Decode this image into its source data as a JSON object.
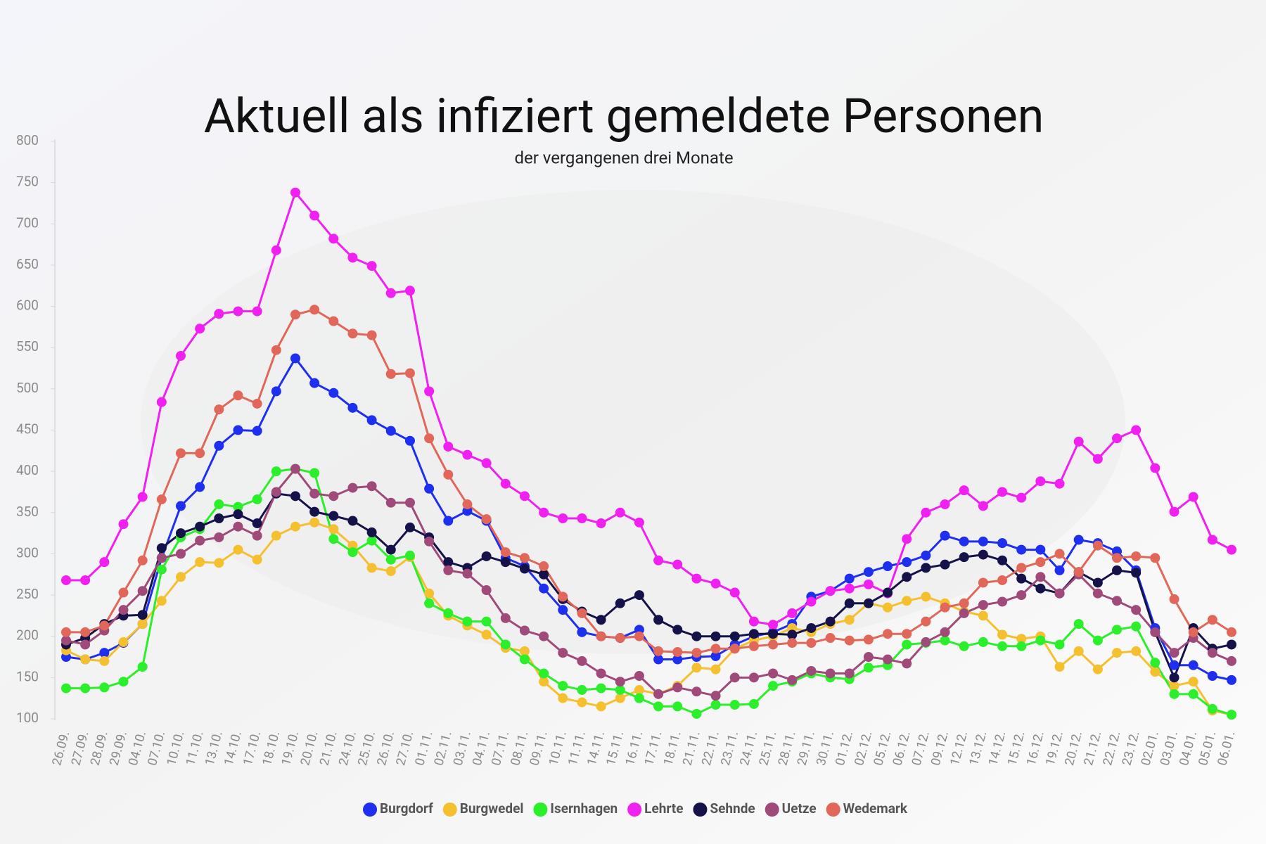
{
  "chart_data": {
    "type": "line",
    "title": "Aktuell als infiziert gemeldete Personen",
    "subtitle": "der vergangenen drei Monate",
    "categories": [
      "26.09.",
      "27.09.",
      "28.09.",
      "29.09.",
      "04.10.",
      "07.10.",
      "10.10.",
      "11.10.",
      "13.10.",
      "14.10.",
      "17.10.",
      "18.10.",
      "19.10.",
      "20.10.",
      "21.10.",
      "24.10.",
      "25.10.",
      "26.10.",
      "27.10.",
      "01.11.",
      "02.11.",
      "03.11.",
      "04.11.",
      "07.11.",
      "08.11.",
      "09.11.",
      "10.11.",
      "11.11.",
      "14.11.",
      "15.11.",
      "16.11.",
      "17.11.",
      "18.11.",
      "21.11.",
      "22.11.",
      "23.11.",
      "24.11.",
      "25.11.",
      "28.11.",
      "29.11.",
      "30.11.",
      "01.12.",
      "02.12.",
      "05.12.",
      "06.12.",
      "07.12.",
      "09.12.",
      "12.12.",
      "13.12.",
      "14.12.",
      "15.12.",
      "16.12.",
      "19.12.",
      "20.12.",
      "21.12.",
      "22.12.",
      "23.12.",
      "02.01.",
      "03.01.",
      "04.01.",
      "05.01.",
      "06.01."
    ],
    "series": [
      {
        "name": "Burgdorf",
        "color": "#1f2ff0",
        "values": [
          175,
          172,
          180,
          192,
          215,
          295,
          358,
          381,
          431,
          450,
          449,
          497,
          537,
          507,
          495,
          477,
          462,
          449,
          437,
          379,
          340,
          352,
          340,
          295,
          285,
          258,
          232,
          205,
          200,
          198,
          208,
          172,
          172,
          175,
          176,
          190,
          200,
          205,
          215,
          248,
          255,
          270,
          278,
          285,
          290,
          298,
          322,
          315,
          315,
          313,
          305,
          305,
          280,
          317,
          313,
          303,
          280,
          210,
          165,
          165,
          152,
          147
        ]
      },
      {
        "name": "Burgwedel",
        "color": "#f5c030",
        "values": [
          183,
          172,
          170,
          193,
          215,
          243,
          272,
          290,
          289,
          305,
          293,
          322,
          333,
          338,
          330,
          310,
          283,
          279,
          296,
          252,
          225,
          213,
          202,
          186,
          182,
          145,
          125,
          120,
          115,
          125,
          135,
          130,
          140,
          162,
          160,
          185,
          195,
          200,
          210,
          205,
          215,
          220,
          240,
          235,
          243,
          248,
          240,
          230,
          225,
          202,
          197,
          200,
          163,
          182,
          160,
          180,
          182,
          157,
          140,
          145,
          110,
          105
        ]
      },
      {
        "name": "Isernhagen",
        "color": "#2aef2a",
        "values": [
          137,
          137,
          138,
          145,
          163,
          281,
          320,
          330,
          360,
          357,
          366,
          400,
          403,
          398,
          318,
          302,
          316,
          293,
          298,
          240,
          228,
          218,
          218,
          190,
          172,
          155,
          140,
          135,
          137,
          135,
          125,
          115,
          115,
          106,
          117,
          117,
          118,
          140,
          145,
          155,
          150,
          148,
          162,
          165,
          190,
          192,
          195,
          188,
          193,
          188,
          188,
          195,
          190,
          215,
          195,
          208,
          212,
          168,
          130,
          130,
          112,
          105
        ]
      },
      {
        "name": "Lehrte",
        "color": "#f020f0",
        "values": [
          268,
          268,
          290,
          336,
          369,
          484,
          540,
          573,
          591,
          594,
          594,
          668,
          738,
          710,
          682,
          659,
          649,
          616,
          619,
          497,
          430,
          420,
          410,
          385,
          370,
          350,
          343,
          343,
          337,
          350,
          338,
          292,
          287,
          270,
          264,
          253,
          218,
          214,
          228,
          242,
          255,
          258,
          263,
          252,
          318,
          350,
          360,
          377,
          358,
          375,
          368,
          388,
          385,
          436,
          415,
          440,
          450,
          404,
          351,
          369,
          317,
          305
        ]
      },
      {
        "name": "Sehnde",
        "color": "#15124a",
        "values": [
          190,
          198,
          215,
          225,
          226,
          307,
          325,
          333,
          343,
          348,
          337,
          373,
          370,
          351,
          346,
          340,
          326,
          305,
          332,
          320,
          290,
          283,
          297,
          290,
          282,
          275,
          245,
          230,
          220,
          240,
          250,
          220,
          208,
          200,
          200,
          200,
          203,
          203,
          202,
          210,
          218,
          240,
          240,
          253,
          272,
          283,
          287,
          296,
          299,
          292,
          270,
          258,
          252,
          278,
          265,
          280,
          277,
          205,
          150,
          210,
          185,
          190
        ]
      },
      {
        "name": "Uetze",
        "color": "#a04a7a",
        "values": [
          195,
          190,
          207,
          232,
          255,
          295,
          300,
          316,
          320,
          333,
          322,
          375,
          403,
          373,
          370,
          380,
          382,
          362,
          362,
          315,
          280,
          276,
          256,
          222,
          207,
          200,
          180,
          170,
          155,
          145,
          152,
          130,
          138,
          133,
          128,
          150,
          150,
          155,
          147,
          158,
          155,
          155,
          175,
          172,
          167,
          193,
          205,
          228,
          238,
          242,
          250,
          272,
          252,
          275,
          252,
          243,
          232,
          205,
          180,
          198,
          180,
          170
        ]
      },
      {
        "name": "Wedemark",
        "color": "#e0675a",
        "values": [
          205,
          205,
          213,
          253,
          292,
          366,
          422,
          422,
          475,
          492,
          482,
          547,
          590,
          596,
          582,
          567,
          565,
          518,
          519,
          440,
          396,
          360,
          342,
          302,
          295,
          285,
          248,
          228,
          200,
          198,
          200,
          182,
          181,
          180,
          185,
          185,
          188,
          190,
          192,
          192,
          198,
          195,
          196,
          203,
          203,
          218,
          235,
          240,
          265,
          268,
          283,
          290,
          300,
          278,
          310,
          295,
          297,
          295,
          245,
          205,
          220,
          205
        ]
      }
    ],
    "ylim": [
      100,
      800
    ],
    "yticks": [
      100,
      150,
      200,
      250,
      300,
      350,
      400,
      450,
      500,
      550,
      600,
      650,
      700,
      750,
      800
    ]
  }
}
